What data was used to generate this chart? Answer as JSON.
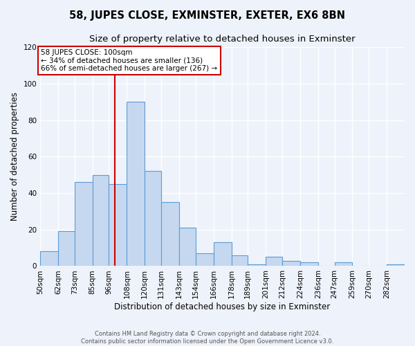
{
  "title": "58, JUPES CLOSE, EXMINSTER, EXETER, EX6 8BN",
  "subtitle": "Size of property relative to detached houses in Exminster",
  "xlabel": "Distribution of detached houses by size in Exminster",
  "ylabel": "Number of detached properties",
  "footer_line1": "Contains HM Land Registry data © Crown copyright and database right 2024.",
  "footer_line2": "Contains public sector information licensed under the Open Government Licence v3.0.",
  "bin_labels": [
    "50sqm",
    "62sqm",
    "73sqm",
    "85sqm",
    "96sqm",
    "108sqm",
    "120sqm",
    "131sqm",
    "143sqm",
    "154sqm",
    "166sqm",
    "178sqm",
    "189sqm",
    "201sqm",
    "212sqm",
    "224sqm",
    "236sqm",
    "247sqm",
    "259sqm",
    "270sqm",
    "282sqm"
  ],
  "bar_heights": [
    8,
    19,
    46,
    50,
    45,
    90,
    52,
    35,
    21,
    7,
    13,
    6,
    1,
    5,
    3,
    2,
    0,
    2,
    0,
    0,
    1
  ],
  "bin_edges": [
    50,
    62,
    73,
    85,
    96,
    108,
    120,
    131,
    143,
    154,
    166,
    178,
    189,
    201,
    212,
    224,
    236,
    247,
    259,
    270,
    282,
    294
  ],
  "bar_color": "#c5d8f0",
  "bar_edge_color": "#5b9bd5",
  "vline_x": 100,
  "vline_color": "#cc0000",
  "annotation_line1": "58 JUPES CLOSE: 100sqm",
  "annotation_line2": "← 34% of detached houses are smaller (136)",
  "annotation_line3": "66% of semi-detached houses are larger (267) →",
  "annotation_box_color": "#cc0000",
  "annotation_bg": "#ffffff",
  "ylim": [
    0,
    120
  ],
  "yticks": [
    0,
    20,
    40,
    60,
    80,
    100,
    120
  ],
  "background_color": "#eef2fa",
  "grid_color": "#ffffff",
  "title_fontsize": 10.5,
  "subtitle_fontsize": 9.5,
  "axis_label_fontsize": 8.5,
  "tick_fontsize": 7.5,
  "annotation_fontsize": 7.5,
  "footer_fontsize": 6
}
